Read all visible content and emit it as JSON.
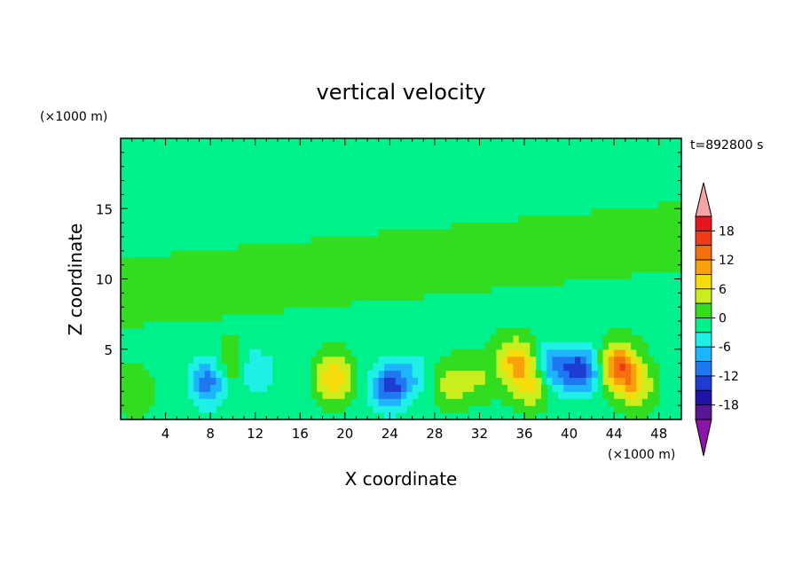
{
  "chart_data": {
    "type": "heatmap",
    "title": "vertical velocity",
    "xlabel": "X coordinate",
    "ylabel": "Z coordinate",
    "x_unit": "(×1000 m)",
    "y_unit": "(×1000 m)",
    "time_label": "t=892800 s",
    "xlim": [
      0,
      50
    ],
    "ylim": [
      0,
      20
    ],
    "x_ticks": [
      4,
      8,
      12,
      16,
      20,
      24,
      28,
      32,
      36,
      40,
      44,
      48
    ],
    "y_ticks": [
      5,
      10,
      15
    ],
    "colorbar": {
      "ticks": [
        18,
        12,
        6,
        0,
        -6,
        -12,
        -18
      ],
      "range": [
        -21,
        21
      ],
      "levels": [
        {
          "min": 18,
          "max": 21,
          "color": "#e8141e"
        },
        {
          "min": 15,
          "max": 18,
          "color": "#f03c14"
        },
        {
          "min": 12,
          "max": 15,
          "color": "#f56e0f"
        },
        {
          "min": 9,
          "max": 12,
          "color": "#faa00a"
        },
        {
          "min": 6,
          "max": 9,
          "color": "#f5dc0a"
        },
        {
          "min": 3,
          "max": 6,
          "color": "#c8ee1e"
        },
        {
          "min": 0,
          "max": 3,
          "color": "#32dc1e"
        },
        {
          "min": -3,
          "max": 0,
          "color": "#00f08c"
        },
        {
          "min": -6,
          "max": -3,
          "color": "#1ef0e6"
        },
        {
          "min": -9,
          "max": -6,
          "color": "#1eb4ff"
        },
        {
          "min": -12,
          "max": -9,
          "color": "#1e78f0"
        },
        {
          "min": -15,
          "max": -12,
          "color": "#1e3cd2"
        },
        {
          "min": -18,
          "max": -15,
          "color": "#1e14aa"
        },
        {
          "min": -21,
          "max": -18,
          "color": "#5a1496"
        }
      ],
      "over_color": "#f5a3a3",
      "under_color": "#8c14a8"
    },
    "features": [
      {
        "x": 1.2,
        "z": 2.0,
        "w": 4
      },
      {
        "x": 7.8,
        "z": 2.7,
        "w": -10
      },
      {
        "x": 10.0,
        "z": 3.8,
        "w": 5
      },
      {
        "x": 11.8,
        "z": 3.5,
        "w": -6
      },
      {
        "x": 15.5,
        "z": 3.0,
        "w": -2
      },
      {
        "x": 19.0,
        "z": 3.0,
        "w": 10
      },
      {
        "x": 24.0,
        "z": 2.3,
        "w": -12
      },
      {
        "x": 26.0,
        "z": 3.2,
        "w": -4
      },
      {
        "x": 29.5,
        "z": 2.5,
        "w": 6
      },
      {
        "x": 32.0,
        "z": 3.0,
        "w": 4
      },
      {
        "x": 35.2,
        "z": 4.2,
        "w": 10
      },
      {
        "x": 36.5,
        "z": 2.5,
        "w": 8
      },
      {
        "x": 38.5,
        "z": 3.8,
        "w": -8
      },
      {
        "x": 41.0,
        "z": 3.5,
        "w": -13
      },
      {
        "x": 44.5,
        "z": 3.8,
        "w": 15
      },
      {
        "x": 46.0,
        "z": 2.3,
        "w": 7
      }
    ]
  }
}
